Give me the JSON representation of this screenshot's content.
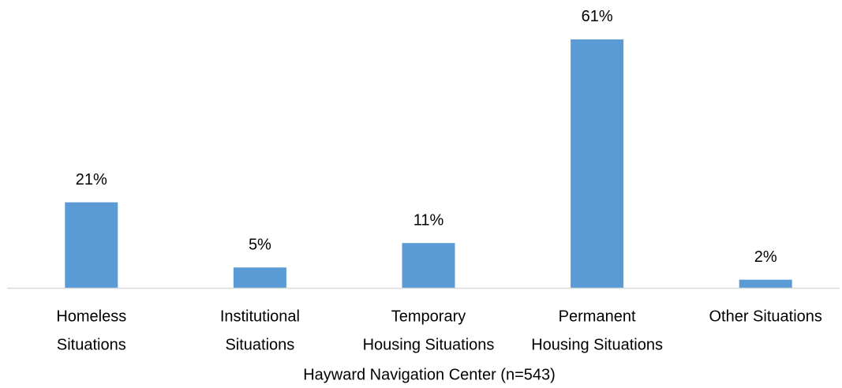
{
  "chart_data": {
    "type": "bar",
    "categories": [
      [
        "Homeless",
        "Situations"
      ],
      [
        "Institutional",
        "Situations"
      ],
      [
        "Temporary",
        "Housing Situations"
      ],
      [
        "Permanent",
        "Housing Situations"
      ],
      [
        "Other Situations"
      ]
    ],
    "values": [
      21,
      5,
      11,
      61,
      2
    ],
    "value_labels": [
      "21%",
      "5%",
      "11%",
      "61%",
      "2%"
    ],
    "color": "#5b9bd5",
    "xlabel": "Hayward Navigation Center (n=543)",
    "ylim": [
      0,
      65
    ]
  }
}
